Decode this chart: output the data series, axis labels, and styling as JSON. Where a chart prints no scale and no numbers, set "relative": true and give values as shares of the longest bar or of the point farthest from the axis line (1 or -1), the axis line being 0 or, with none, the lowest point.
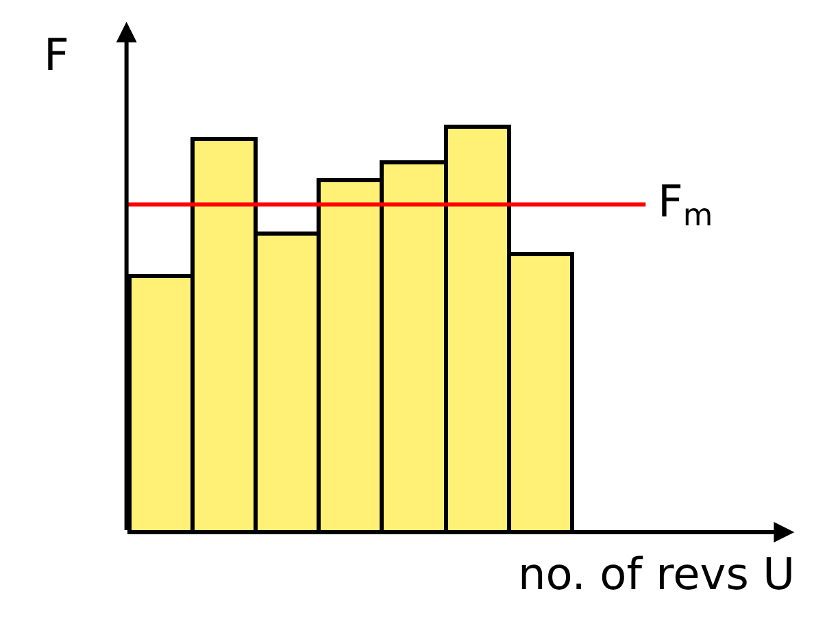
{
  "chart_data": {
    "type": "bar",
    "relative": true,
    "xlabel": "no. of revs U",
    "ylabel": "F",
    "categories": [
      null,
      null,
      null,
      null,
      null,
      null,
      null
    ],
    "values": [
      0.631,
      0.97,
      0.735,
      0.869,
      0.913,
      1,
      0.685
    ],
    "color": "#fff176",
    "ref_lines": [
      {
        "axis": "y",
        "value": 0.809,
        "label": "F$_{m}$",
        "color": "#ff0000"
      }
    ]
  }
}
